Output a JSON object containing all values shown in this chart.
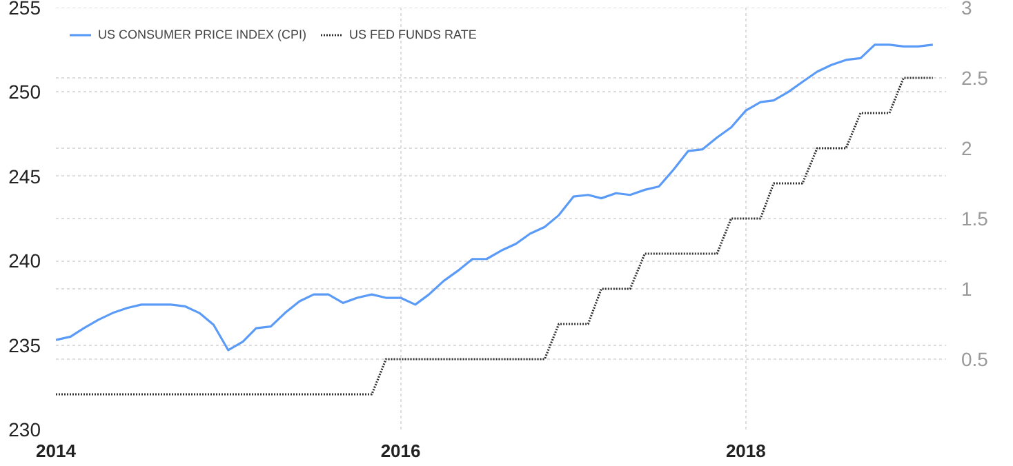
{
  "chart_data": {
    "type": "line",
    "x": [
      "2014-01",
      "2014-02",
      "2014-03",
      "2014-04",
      "2014-05",
      "2014-06",
      "2014-07",
      "2014-08",
      "2014-09",
      "2014-10",
      "2014-11",
      "2014-12",
      "2015-01",
      "2015-02",
      "2015-03",
      "2015-04",
      "2015-05",
      "2015-06",
      "2015-07",
      "2015-08",
      "2015-09",
      "2015-10",
      "2015-11",
      "2015-12",
      "2016-01",
      "2016-02",
      "2016-03",
      "2016-04",
      "2016-05",
      "2016-06",
      "2016-07",
      "2016-08",
      "2016-09",
      "2016-10",
      "2016-11",
      "2016-12",
      "2017-01",
      "2017-02",
      "2017-03",
      "2017-04",
      "2017-05",
      "2017-06",
      "2017-07",
      "2017-08",
      "2017-09",
      "2017-10",
      "2017-11",
      "2017-12",
      "2018-01",
      "2018-02",
      "2018-03",
      "2018-04",
      "2018-05",
      "2018-06",
      "2018-07",
      "2018-08",
      "2018-09",
      "2018-10",
      "2018-11",
      "2018-12",
      "2019-01",
      "2019-02"
    ],
    "series": [
      {
        "name": "US CONSUMER PRICE INDEX (CPI)",
        "color": "#5b9bf8",
        "line_style": "solid",
        "values": [
          235.3,
          235.5,
          236.0,
          236.5,
          236.9,
          237.2,
          237.4,
          237.4,
          237.4,
          237.3,
          236.9,
          236.2,
          234.7,
          235.2,
          236.0,
          236.1,
          236.9,
          237.6,
          238.0,
          238.0,
          237.5,
          237.8,
          238.0,
          237.8,
          237.8,
          237.4,
          238.0,
          238.8,
          239.4,
          240.1,
          240.1,
          240.6,
          241.0,
          241.6,
          242.0,
          242.7,
          243.8,
          243.9,
          243.7,
          244.0,
          243.9,
          244.2,
          244.4,
          245.4,
          246.5,
          246.6,
          247.3,
          247.9,
          248.9,
          249.4,
          249.5,
          250.0,
          250.6,
          251.2,
          251.6,
          251.9,
          252.0,
          252.8,
          252.8,
          252.7,
          252.7,
          252.8
        ]
      },
      {
        "name": "US FED FUNDS RATE",
        "color": "#333333",
        "line_style": "dotted",
        "axis": "y2",
        "values": [
          0.25,
          0.25,
          0.25,
          0.25,
          0.25,
          0.25,
          0.25,
          0.25,
          0.25,
          0.25,
          0.25,
          0.25,
          0.25,
          0.25,
          0.25,
          0.25,
          0.25,
          0.25,
          0.25,
          0.25,
          0.25,
          0.25,
          0.25,
          0.5,
          0.5,
          0.5,
          0.5,
          0.5,
          0.5,
          0.5,
          0.5,
          0.5,
          0.5,
          0.5,
          0.5,
          0.75,
          0.75,
          0.75,
          1.0,
          1.0,
          1.0,
          1.25,
          1.25,
          1.25,
          1.25,
          1.25,
          1.25,
          1.5,
          1.5,
          1.5,
          1.75,
          1.75,
          1.75,
          2.0,
          2.0,
          2.0,
          2.25,
          2.25,
          2.25,
          2.5,
          2.5,
          2.5
        ]
      }
    ],
    "xlim": [
      "2014-01-01",
      "2019-03-01"
    ],
    "xticks": [
      {
        "value": "2014-01-01",
        "label": "2014"
      },
      {
        "value": "2016-01-01",
        "label": "2016"
      },
      {
        "value": "2018-01-01",
        "label": "2018"
      }
    ],
    "ylim": [
      230,
      255
    ],
    "yticks": [
      230,
      235,
      240,
      245,
      250,
      255
    ],
    "y2lim": [
      0,
      3
    ],
    "y2ticks": [
      0.5,
      1,
      1.5,
      2,
      2.5,
      3
    ],
    "grid": true,
    "legend": "top left"
  }
}
